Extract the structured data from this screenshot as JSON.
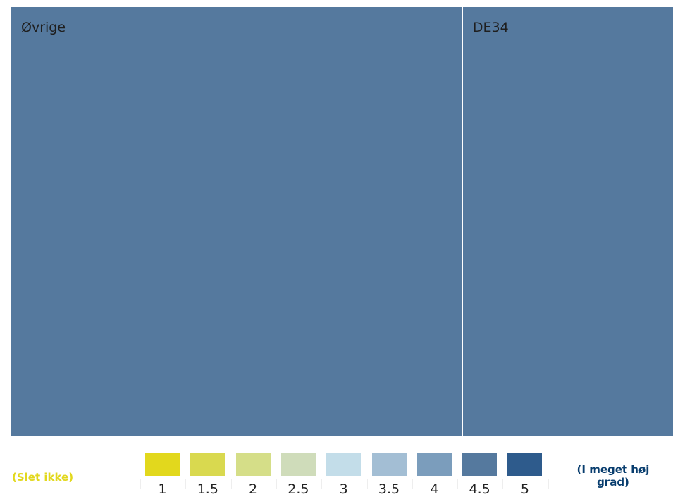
{
  "chart_data": {
    "type": "treemap",
    "title": "",
    "tiles": [
      {
        "label": "Øvrige",
        "value": 4.5,
        "weight": 0.6825
      },
      {
        "label": "DE34",
        "value": 4.5,
        "weight": 0.3175
      }
    ],
    "legend": {
      "low_label": "(Slet ikke)",
      "high_label": "(I meget høj grad)",
      "low_color": "#e2d81d",
      "high_color": "#083d6e",
      "stops": [
        {
          "value": "1",
          "color": "#e2d81d"
        },
        {
          "value": "1.5",
          "color": "#d9d94f"
        },
        {
          "value": "2",
          "color": "#d5de88"
        },
        {
          "value": "2.5",
          "color": "#cfdcba"
        },
        {
          "value": "3",
          "color": "#c3dde9"
        },
        {
          "value": "3.5",
          "color": "#a3bed4"
        },
        {
          "value": "4",
          "color": "#7b9dbc"
        },
        {
          "value": "4.5",
          "color": "#55799e"
        },
        {
          "value": "5",
          "color": "#2e5b8c"
        }
      ]
    }
  }
}
